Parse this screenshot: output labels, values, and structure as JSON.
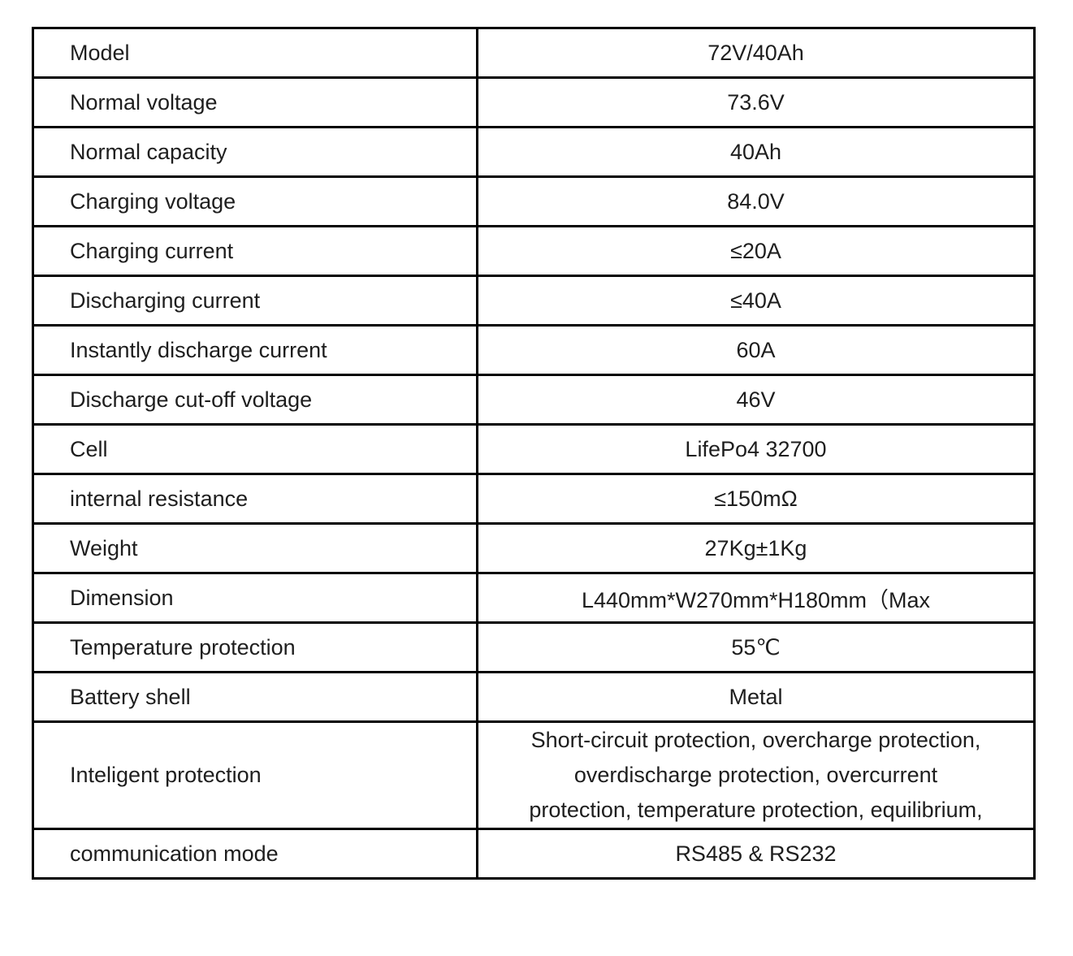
{
  "specs": [
    {
      "label": "Model",
      "value": "72V/40Ah"
    },
    {
      "label": "Normal voltage",
      "value": "73.6V"
    },
    {
      "label": "Normal capacity",
      "value": "40Ah"
    },
    {
      "label": "Charging voltage",
      "value": "84.0V"
    },
    {
      "label": "Charging current",
      "value": "≤20A"
    },
    {
      "label": "Discharging current",
      "value": "≤40A"
    },
    {
      "label": "Instantly discharge current",
      "value": "60A"
    },
    {
      "label": "Discharge cut-off voltage",
      "value": "46V"
    },
    {
      "label": "Cell",
      "value": "LifePo4 32700"
    },
    {
      "label": "internal resistance",
      "value": "≤150mΩ"
    },
    {
      "label": "Weight",
      "value": "27Kg±1Kg"
    },
    {
      "label": "Dimension",
      "value": "L440mm*W270mm*H180mm（Max"
    },
    {
      "label": "Temperature protection",
      "value": "55℃"
    },
    {
      "label": "Battery shell",
      "value": "Metal"
    },
    {
      "label": "Inteligent protection",
      "value_lines": [
        "Short-circuit protection, overcharge protection,",
        "overdischarge protection, overcurrent",
        "protection, temperature protection, equilibrium,"
      ]
    },
    {
      "label": "communication mode",
      "value": "RS485 & RS232"
    }
  ]
}
